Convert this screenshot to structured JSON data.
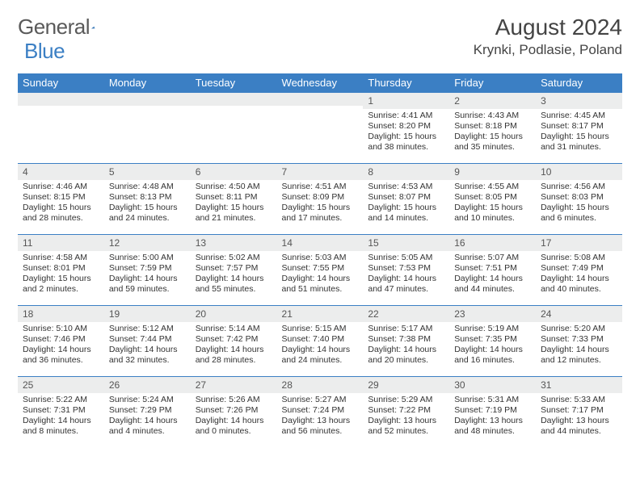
{
  "logo": {
    "text1": "General",
    "text2": "Blue"
  },
  "header": {
    "month": "August 2024",
    "location": "Krynki, Podlasie, Poland"
  },
  "colors": {
    "header_bg": "#3b7fc4",
    "daynum_bg": "#eceded",
    "rule": "#3b7fc4",
    "text": "#333333"
  },
  "weekdays": [
    "Sunday",
    "Monday",
    "Tuesday",
    "Wednesday",
    "Thursday",
    "Friday",
    "Saturday"
  ],
  "weeks": [
    [
      null,
      null,
      null,
      null,
      {
        "n": "1",
        "sr": "Sunrise: 4:41 AM",
        "ss": "Sunset: 8:20 PM",
        "d1": "Daylight: 15 hours",
        "d2": "and 38 minutes."
      },
      {
        "n": "2",
        "sr": "Sunrise: 4:43 AM",
        "ss": "Sunset: 8:18 PM",
        "d1": "Daylight: 15 hours",
        "d2": "and 35 minutes."
      },
      {
        "n": "3",
        "sr": "Sunrise: 4:45 AM",
        "ss": "Sunset: 8:17 PM",
        "d1": "Daylight: 15 hours",
        "d2": "and 31 minutes."
      }
    ],
    [
      {
        "n": "4",
        "sr": "Sunrise: 4:46 AM",
        "ss": "Sunset: 8:15 PM",
        "d1": "Daylight: 15 hours",
        "d2": "and 28 minutes."
      },
      {
        "n": "5",
        "sr": "Sunrise: 4:48 AM",
        "ss": "Sunset: 8:13 PM",
        "d1": "Daylight: 15 hours",
        "d2": "and 24 minutes."
      },
      {
        "n": "6",
        "sr": "Sunrise: 4:50 AM",
        "ss": "Sunset: 8:11 PM",
        "d1": "Daylight: 15 hours",
        "d2": "and 21 minutes."
      },
      {
        "n": "7",
        "sr": "Sunrise: 4:51 AM",
        "ss": "Sunset: 8:09 PM",
        "d1": "Daylight: 15 hours",
        "d2": "and 17 minutes."
      },
      {
        "n": "8",
        "sr": "Sunrise: 4:53 AM",
        "ss": "Sunset: 8:07 PM",
        "d1": "Daylight: 15 hours",
        "d2": "and 14 minutes."
      },
      {
        "n": "9",
        "sr": "Sunrise: 4:55 AM",
        "ss": "Sunset: 8:05 PM",
        "d1": "Daylight: 15 hours",
        "d2": "and 10 minutes."
      },
      {
        "n": "10",
        "sr": "Sunrise: 4:56 AM",
        "ss": "Sunset: 8:03 PM",
        "d1": "Daylight: 15 hours",
        "d2": "and 6 minutes."
      }
    ],
    [
      {
        "n": "11",
        "sr": "Sunrise: 4:58 AM",
        "ss": "Sunset: 8:01 PM",
        "d1": "Daylight: 15 hours",
        "d2": "and 2 minutes."
      },
      {
        "n": "12",
        "sr": "Sunrise: 5:00 AM",
        "ss": "Sunset: 7:59 PM",
        "d1": "Daylight: 14 hours",
        "d2": "and 59 minutes."
      },
      {
        "n": "13",
        "sr": "Sunrise: 5:02 AM",
        "ss": "Sunset: 7:57 PM",
        "d1": "Daylight: 14 hours",
        "d2": "and 55 minutes."
      },
      {
        "n": "14",
        "sr": "Sunrise: 5:03 AM",
        "ss": "Sunset: 7:55 PM",
        "d1": "Daylight: 14 hours",
        "d2": "and 51 minutes."
      },
      {
        "n": "15",
        "sr": "Sunrise: 5:05 AM",
        "ss": "Sunset: 7:53 PM",
        "d1": "Daylight: 14 hours",
        "d2": "and 47 minutes."
      },
      {
        "n": "16",
        "sr": "Sunrise: 5:07 AM",
        "ss": "Sunset: 7:51 PM",
        "d1": "Daylight: 14 hours",
        "d2": "and 44 minutes."
      },
      {
        "n": "17",
        "sr": "Sunrise: 5:08 AM",
        "ss": "Sunset: 7:49 PM",
        "d1": "Daylight: 14 hours",
        "d2": "and 40 minutes."
      }
    ],
    [
      {
        "n": "18",
        "sr": "Sunrise: 5:10 AM",
        "ss": "Sunset: 7:46 PM",
        "d1": "Daylight: 14 hours",
        "d2": "and 36 minutes."
      },
      {
        "n": "19",
        "sr": "Sunrise: 5:12 AM",
        "ss": "Sunset: 7:44 PM",
        "d1": "Daylight: 14 hours",
        "d2": "and 32 minutes."
      },
      {
        "n": "20",
        "sr": "Sunrise: 5:14 AM",
        "ss": "Sunset: 7:42 PM",
        "d1": "Daylight: 14 hours",
        "d2": "and 28 minutes."
      },
      {
        "n": "21",
        "sr": "Sunrise: 5:15 AM",
        "ss": "Sunset: 7:40 PM",
        "d1": "Daylight: 14 hours",
        "d2": "and 24 minutes."
      },
      {
        "n": "22",
        "sr": "Sunrise: 5:17 AM",
        "ss": "Sunset: 7:38 PM",
        "d1": "Daylight: 14 hours",
        "d2": "and 20 minutes."
      },
      {
        "n": "23",
        "sr": "Sunrise: 5:19 AM",
        "ss": "Sunset: 7:35 PM",
        "d1": "Daylight: 14 hours",
        "d2": "and 16 minutes."
      },
      {
        "n": "24",
        "sr": "Sunrise: 5:20 AM",
        "ss": "Sunset: 7:33 PM",
        "d1": "Daylight: 14 hours",
        "d2": "and 12 minutes."
      }
    ],
    [
      {
        "n": "25",
        "sr": "Sunrise: 5:22 AM",
        "ss": "Sunset: 7:31 PM",
        "d1": "Daylight: 14 hours",
        "d2": "and 8 minutes."
      },
      {
        "n": "26",
        "sr": "Sunrise: 5:24 AM",
        "ss": "Sunset: 7:29 PM",
        "d1": "Daylight: 14 hours",
        "d2": "and 4 minutes."
      },
      {
        "n": "27",
        "sr": "Sunrise: 5:26 AM",
        "ss": "Sunset: 7:26 PM",
        "d1": "Daylight: 14 hours",
        "d2": "and 0 minutes."
      },
      {
        "n": "28",
        "sr": "Sunrise: 5:27 AM",
        "ss": "Sunset: 7:24 PM",
        "d1": "Daylight: 13 hours",
        "d2": "and 56 minutes."
      },
      {
        "n": "29",
        "sr": "Sunrise: 5:29 AM",
        "ss": "Sunset: 7:22 PM",
        "d1": "Daylight: 13 hours",
        "d2": "and 52 minutes."
      },
      {
        "n": "30",
        "sr": "Sunrise: 5:31 AM",
        "ss": "Sunset: 7:19 PM",
        "d1": "Daylight: 13 hours",
        "d2": "and 48 minutes."
      },
      {
        "n": "31",
        "sr": "Sunrise: 5:33 AM",
        "ss": "Sunset: 7:17 PM",
        "d1": "Daylight: 13 hours",
        "d2": "and 44 minutes."
      }
    ]
  ]
}
